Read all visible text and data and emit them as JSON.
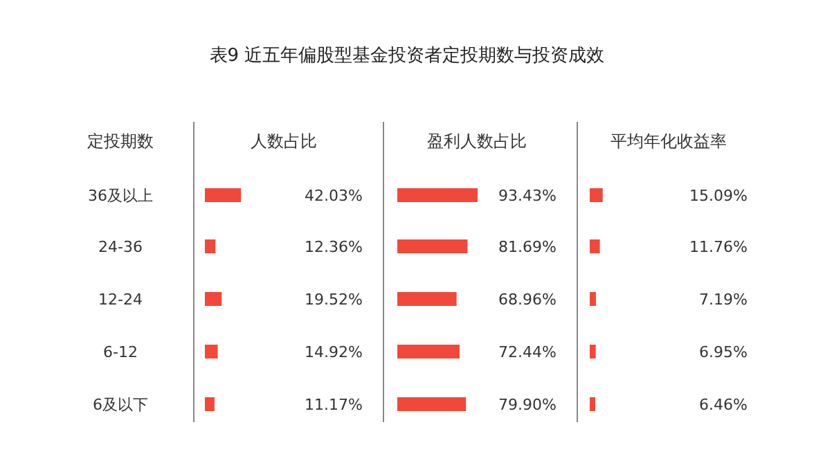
{
  "chart_data": [
    {
      "type": "bar",
      "orientation": "horizontal",
      "title": "表9 近五年偏股型基金投资者定投期数与投资成效",
      "ylabel": "定投期数",
      "xlabel": "人数占比",
      "categories": [
        "36及以上",
        "24-36",
        "12-24",
        "6-12",
        "6及以下"
      ],
      "values": [
        42.03,
        12.36,
        19.52,
        14.92,
        11.17
      ],
      "value_labels": [
        "42.03%",
        "12.36%",
        "19.52%",
        "14.92%",
        "11.17%"
      ],
      "color": "#f0483a",
      "tick_labels": "y"
    },
    {
      "type": "bar",
      "orientation": "horizontal",
      "xlabel": "盈利人数占比",
      "categories": [
        "36及以上",
        "24-36",
        "12-24",
        "6-12",
        "6及以下"
      ],
      "values": [
        93.43,
        81.69,
        68.96,
        72.44,
        79.9
      ],
      "value_labels": [
        "93.43%",
        "81.69%",
        "68.96%",
        "72.44%",
        "79.90%"
      ],
      "color": "#f0483a",
      "tick_labels": false
    },
    {
      "type": "bar",
      "orientation": "horizontal",
      "xlabel": "平均年化收益率",
      "categories": [
        "36及以上",
        "24-36",
        "12-24",
        "6-12",
        "6及以下"
      ],
      "values": [
        15.09,
        11.76,
        7.19,
        6.95,
        6.46
      ],
      "value_labels": [
        "15.09%",
        "11.76%",
        "7.19%",
        "6.95%",
        "6.46%"
      ],
      "color": "#f0483a",
      "tick_labels": false
    }
  ]
}
